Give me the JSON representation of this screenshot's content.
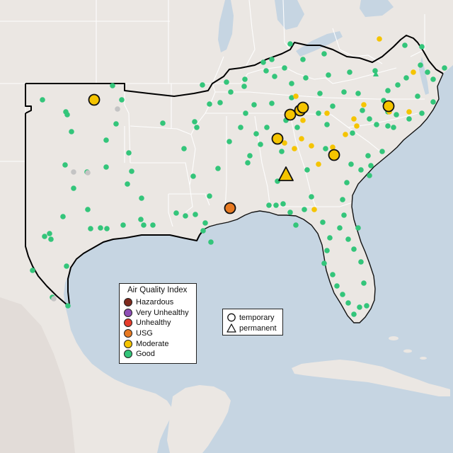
{
  "legend": {
    "title": "Air Quality Index",
    "categories": [
      {
        "label": "Hazardous",
        "color": "#7e2a1e"
      },
      {
        "label": "Very Unhealthy",
        "color": "#8e4fb6"
      },
      {
        "label": "Unhealthy",
        "color": "#e63d2c"
      },
      {
        "label": "USG",
        "color": "#e87a22"
      },
      {
        "label": "Moderate",
        "color": "#f5c400"
      },
      {
        "label": "Good",
        "color": "#33c57a"
      }
    ],
    "monitor_types": [
      {
        "label": "temporary",
        "shape": "circle"
      },
      {
        "label": "permanent",
        "shape": "triangle"
      }
    ]
  },
  "colors": {
    "ocean": "#c6d5e2",
    "land": "#ebe7e3",
    "region_outline": "#000000",
    "no_data": "#c4c4c4"
  }
}
